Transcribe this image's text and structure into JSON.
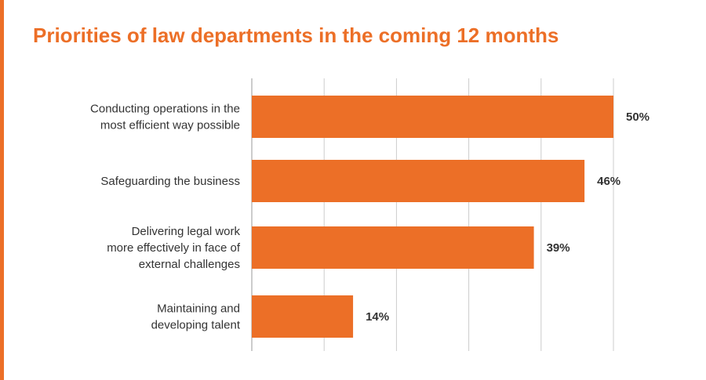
{
  "colors": {
    "accent": "#ec6f27",
    "bar": "#ec6f27",
    "grid": "#cccccc",
    "axis": "#999999",
    "text": "#333333"
  },
  "chart_data": {
    "type": "bar",
    "orientation": "horizontal",
    "title": "Priorities of law departments in the coming 12 months",
    "categories": [
      [
        "Conducting operations in the",
        "most efficient way possible"
      ],
      [
        "Safeguarding the business"
      ],
      [
        "Delivering legal work",
        "more effectively in face of",
        "external challenges"
      ],
      [
        "Maintaining and",
        "developing talent"
      ]
    ],
    "values": [
      50,
      46,
      39,
      14
    ],
    "value_labels": [
      "50%",
      "46%",
      "39%",
      "14%"
    ],
    "xlim": [
      0,
      50
    ],
    "unit": "%",
    "grid": true,
    "legend": "none"
  }
}
